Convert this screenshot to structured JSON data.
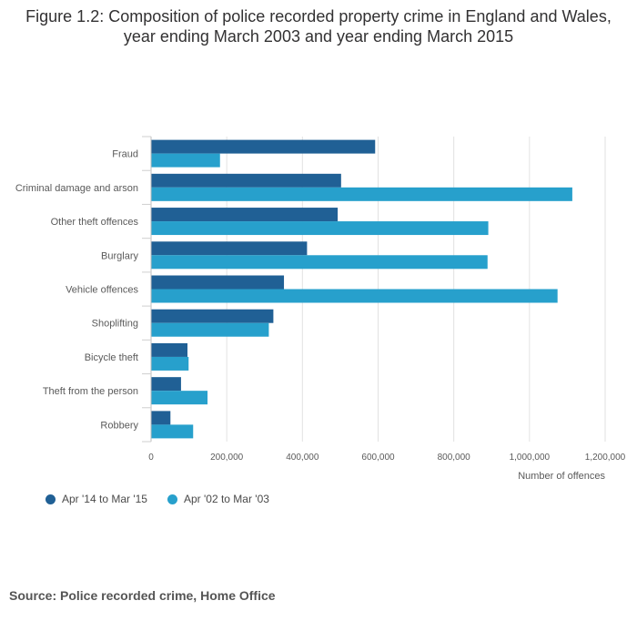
{
  "title": "Figure 1.2: Composition of police recorded property crime in England and Wales, year ending March 2003 and year ending March 2015",
  "source": "Source: Police recorded crime, Home Office",
  "colors": {
    "series1": "#206095",
    "series2": "#27a0cc"
  },
  "chart_data": {
    "type": "bar",
    "orientation": "horizontal",
    "title": "Figure 1.2: Composition of police recorded property crime in England and Wales, year ending March 2003 and year ending March 2015",
    "xlabel": "Number of offences",
    "ylabel": "",
    "xlim": [
      0,
      1200000
    ],
    "ticks": [
      {
        "value": 0,
        "label": "0"
      },
      {
        "value": 200000,
        "label": "200,000"
      },
      {
        "value": 400000,
        "label": "400,000"
      },
      {
        "value": 600000,
        "label": "600,000"
      },
      {
        "value": 800000,
        "label": "800,000"
      },
      {
        "value": 1000000,
        "label": "1,000,000"
      },
      {
        "value": 1200000,
        "label": "1,200,000"
      }
    ],
    "grid": true,
    "legend_position": "bottom-left",
    "categories": [
      "Fraud",
      "Criminal damage and arson",
      "Other theft offences",
      "Burglary",
      "Vehicle offences",
      "Shoplifting",
      "Bicycle theft",
      "Theft from the person",
      "Robbery"
    ],
    "series": [
      {
        "name": "Apr '14 to Mar '15",
        "color": "#206095",
        "values": [
          591000,
          501000,
          492000,
          411000,
          350000,
          322000,
          95000,
          78000,
          50000
        ]
      },
      {
        "name": "Apr '02 to Mar '03",
        "color": "#27a0cc",
        "values": [
          181000,
          1112000,
          890000,
          888000,
          1073000,
          310000,
          98000,
          148000,
          110000
        ]
      }
    ]
  }
}
